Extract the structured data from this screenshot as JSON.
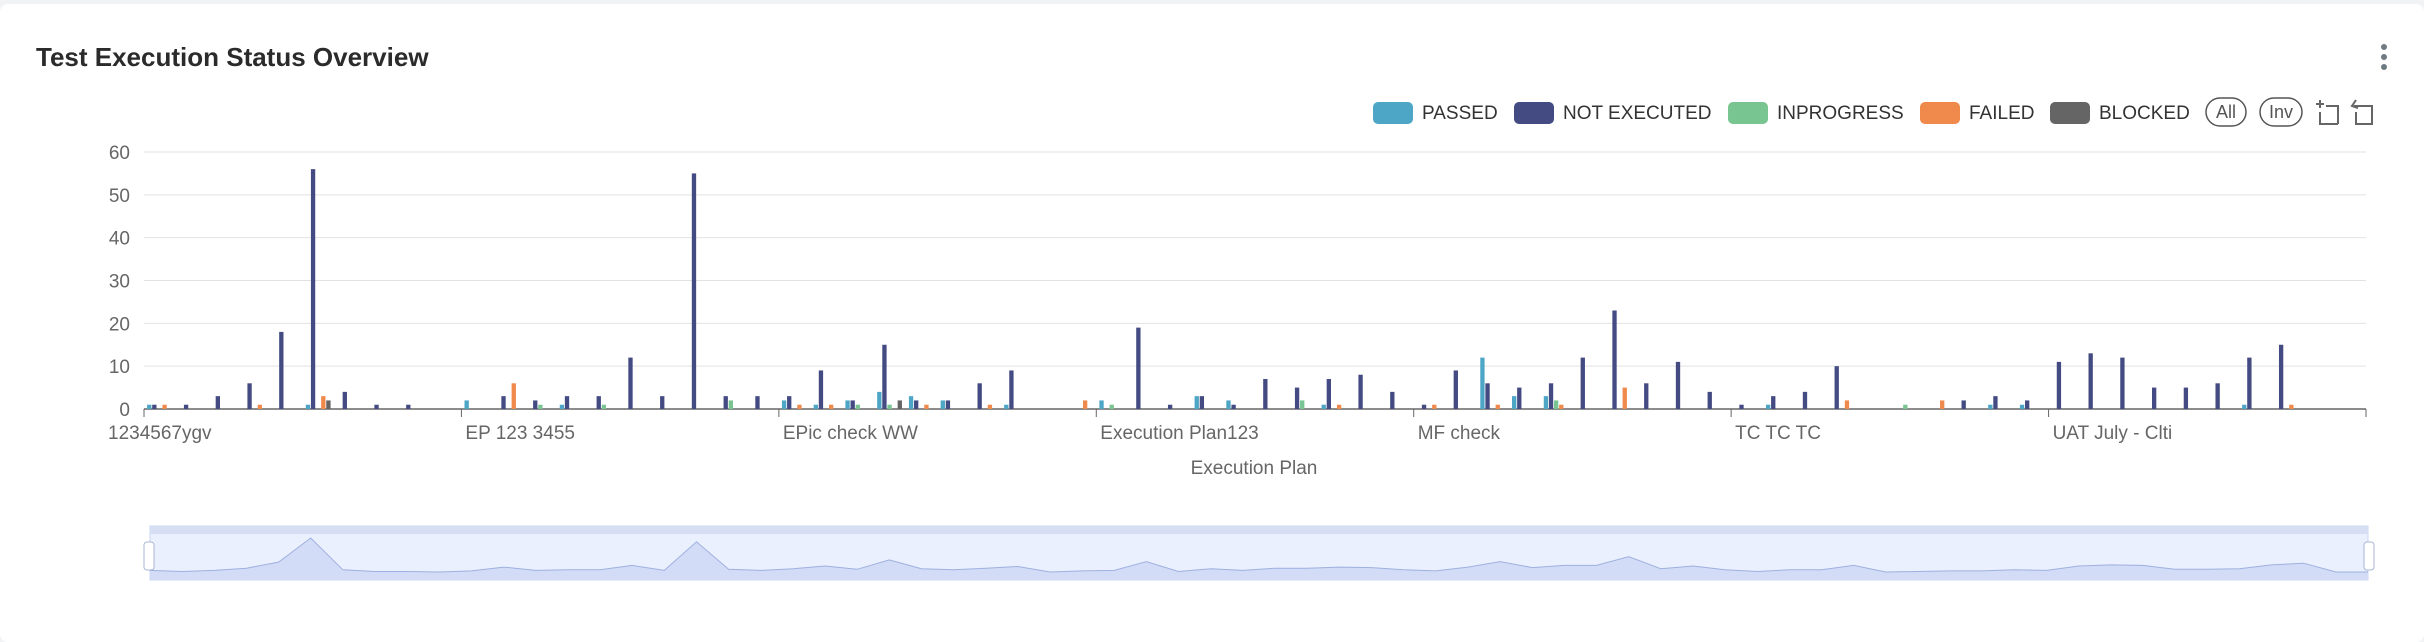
{
  "title": "Test Execution Status Overview",
  "menu_icon": "kebab-vertical-icon",
  "legend_controls": {
    "all_label": "All",
    "inv_label": "Inv"
  },
  "toolbox_icons": [
    "zoom-select-icon",
    "zoom-reset-icon"
  ],
  "chart_data": {
    "type": "bar",
    "title": "Test Execution Status Overview",
    "xlabel": "Execution Plan",
    "ylabel": "",
    "ylim": [
      0,
      60
    ],
    "yticks": [
      0,
      10,
      20,
      30,
      40,
      50,
      60
    ],
    "grid": true,
    "legend_position": "top-right",
    "category_count": 70,
    "visible_tick_labels": [
      {
        "index": 0,
        "label": "1234567ygv"
      },
      {
        "index": 10,
        "label": "EP 123 3455"
      },
      {
        "index": 20,
        "label": "EPic check WW"
      },
      {
        "index": 30,
        "label": "Execution Plan123"
      },
      {
        "index": 40,
        "label": "MF check"
      },
      {
        "index": 50,
        "label": "TC TC TC"
      },
      {
        "index": 60,
        "label": "UAT July - Clti"
      }
    ],
    "series": [
      {
        "name": "PASSED",
        "color": "#4ea6c6",
        "values": [
          1,
          0,
          0,
          0,
          0,
          1,
          0,
          0,
          0,
          0,
          2,
          0,
          0,
          1,
          0,
          0,
          0,
          0,
          0,
          0,
          2,
          1,
          2,
          4,
          3,
          2,
          0,
          1,
          0,
          0,
          2,
          0,
          0,
          3,
          2,
          0,
          0,
          1,
          0,
          0,
          0,
          0,
          12,
          3,
          3,
          0,
          0,
          0,
          0,
          0,
          0,
          1,
          0,
          0,
          0,
          0,
          0,
          0,
          1,
          1,
          0,
          0,
          0,
          0,
          0,
          0,
          1,
          0,
          0,
          0
        ]
      },
      {
        "name": "NOT EXECUTED",
        "color": "#434b82",
        "values": [
          1,
          1,
          3,
          6,
          18,
          56,
          4,
          1,
          1,
          0,
          0,
          3,
          2,
          3,
          3,
          12,
          3,
          55,
          3,
          3,
          3,
          9,
          2,
          15,
          2,
          2,
          6,
          9,
          0,
          0,
          0,
          19,
          1,
          3,
          1,
          7,
          5,
          7,
          8,
          4,
          1,
          9,
          6,
          5,
          6,
          12,
          23,
          6,
          11,
          4,
          1,
          3,
          4,
          10,
          0,
          0,
          0,
          2,
          3,
          2,
          11,
          13,
          12,
          5,
          5,
          6,
          12,
          15,
          0,
          0
        ]
      },
      {
        "name": "INPROGRESS",
        "color": "#79c592",
        "values": [
          0,
          0,
          0,
          0,
          0,
          0,
          0,
          0,
          0,
          0,
          0,
          0,
          1,
          0,
          1,
          0,
          0,
          0,
          2,
          0,
          0,
          0,
          1,
          1,
          0,
          0,
          0,
          0,
          0,
          0,
          1,
          0,
          0,
          0,
          0,
          0,
          2,
          0,
          0,
          0,
          0,
          0,
          0,
          0,
          2,
          0,
          0,
          0,
          0,
          0,
          0,
          0,
          0,
          0,
          0,
          1,
          0,
          0,
          0,
          0,
          0,
          0,
          0,
          0,
          0,
          0,
          0,
          0,
          0,
          0
        ]
      },
      {
        "name": "FAILED",
        "color": "#f0894c",
        "values": [
          1,
          0,
          0,
          1,
          0,
          3,
          0,
          0,
          0,
          0,
          0,
          6,
          0,
          0,
          0,
          0,
          0,
          0,
          0,
          0,
          1,
          1,
          0,
          0,
          1,
          0,
          1,
          0,
          0,
          2,
          0,
          0,
          0,
          0,
          0,
          0,
          0,
          1,
          0,
          0,
          1,
          0,
          1,
          0,
          1,
          0,
          5,
          0,
          0,
          0,
          0,
          0,
          0,
          2,
          0,
          0,
          2,
          0,
          0,
          0,
          0,
          0,
          0,
          0,
          0,
          0,
          0,
          1,
          0,
          0
        ]
      },
      {
        "name": "BLOCKED",
        "color": "#656565",
        "values": [
          0,
          0,
          0,
          0,
          0,
          2,
          0,
          0,
          0,
          0,
          0,
          0,
          0,
          0,
          0,
          0,
          0,
          0,
          0,
          0,
          0,
          0,
          0,
          2,
          0,
          0,
          0,
          0,
          0,
          0,
          0,
          0,
          0,
          0,
          0,
          0,
          0,
          0,
          0,
          0,
          0,
          0,
          0,
          0,
          0,
          0,
          0,
          0,
          0,
          0,
          0,
          0,
          0,
          0,
          0,
          0,
          0,
          0,
          0,
          0,
          0,
          0,
          0,
          0,
          0,
          0,
          0,
          0,
          0,
          0
        ]
      }
    ]
  }
}
